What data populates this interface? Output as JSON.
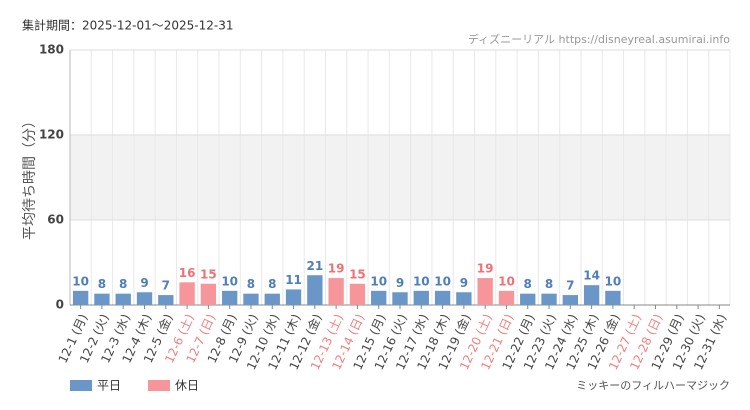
{
  "chart_data": {
    "type": "bar",
    "period": "集計期間：2025-12-01〜2025-12-31",
    "source": "ディズニーリアル https://disneyreal.asumirai.info",
    "y_label": "平均待ち時間（分）",
    "subject": "ミッキーのフィルハーマジック",
    "categories": [
      "12-1 (月)",
      "12-2 (火)",
      "12-3 (水)",
      "12-4 (木)",
      "12-5 (金)",
      "12-6 (土)",
      "12-7 (日)",
      "12-8 (月)",
      "12-9 (火)",
      "12-10 (水)",
      "12-11 (木)",
      "12-12 (金)",
      "12-13 (土)",
      "12-14 (日)",
      "12-15 (月)",
      "12-16 (火)",
      "12-17 (水)",
      "12-18 (木)",
      "12-19 (金)",
      "12-20 (土)",
      "12-21 (日)",
      "12-22 (月)",
      "12-23 (火)",
      "12-24 (水)",
      "12-25 (木)",
      "12-26 (金)",
      "12-27 (土)",
      "12-28 (日)",
      "12-29 (月)",
      "12-30 (火)",
      "12-31 (水)"
    ],
    "category_colors": [
      "#444",
      "#444",
      "#444",
      "#444",
      "#444",
      "#f08080",
      "#f08080",
      "#444",
      "#444",
      "#444",
      "#444",
      "#444",
      "#f08080",
      "#f08080",
      "#444",
      "#444",
      "#444",
      "#444",
      "#444",
      "#f08080",
      "#f08080",
      "#444",
      "#444",
      "#444",
      "#444",
      "#444",
      "#f08080",
      "#f08080",
      "#444",
      "#444",
      "#444"
    ],
    "series": [
      {
        "name": "平日",
        "color": "#6b96c8",
        "label_color": "#4f7fb8",
        "values": [
          10,
          8,
          8,
          9,
          7,
          null,
          null,
          10,
          8,
          8,
          11,
          21,
          null,
          null,
          10,
          9,
          10,
          10,
          9,
          null,
          null,
          8,
          8,
          7,
          14,
          10,
          null,
          null,
          null,
          null,
          null
        ]
      },
      {
        "name": "休日",
        "color": "#f7969a",
        "label_color": "#f07075",
        "values": [
          null,
          null,
          null,
          null,
          null,
          16,
          15,
          null,
          null,
          null,
          null,
          null,
          19,
          15,
          null,
          null,
          null,
          null,
          null,
          19,
          10,
          null,
          null,
          null,
          null,
          null,
          null,
          null,
          null,
          null,
          null
        ]
      }
    ],
    "ylim": [
      0,
      180
    ],
    "yticks": [
      0,
      60,
      120,
      180
    ],
    "grid": true
  }
}
